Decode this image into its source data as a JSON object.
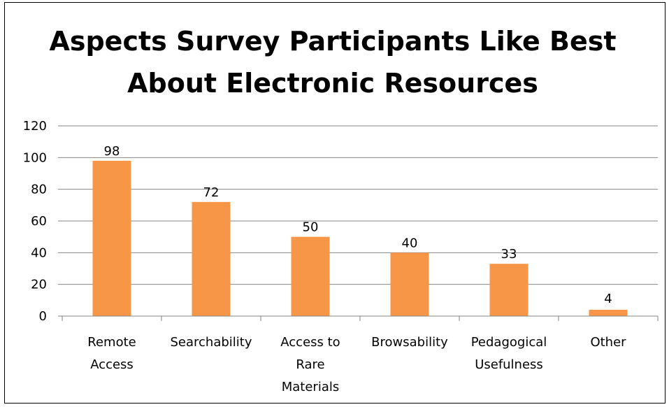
{
  "chart_data": {
    "type": "bar",
    "title_lines": [
      "Aspects Survey Participants Like Best",
      "About Electronic Resources"
    ],
    "categories": [
      [
        "Remote",
        "Access"
      ],
      [
        "Searchability"
      ],
      [
        "Access to",
        "Rare",
        "Materials"
      ],
      [
        "Browsability"
      ],
      [
        "Pedagogical",
        "Usefulness"
      ],
      [
        "Other"
      ]
    ],
    "values": [
      98,
      72,
      50,
      40,
      33,
      4
    ],
    "ylim": [
      0,
      120
    ],
    "yticks": [
      0,
      20,
      40,
      60,
      80,
      100,
      120
    ],
    "grid": true,
    "legend": "none",
    "bar_color": "#F79646",
    "grid_color": "#868686"
  }
}
